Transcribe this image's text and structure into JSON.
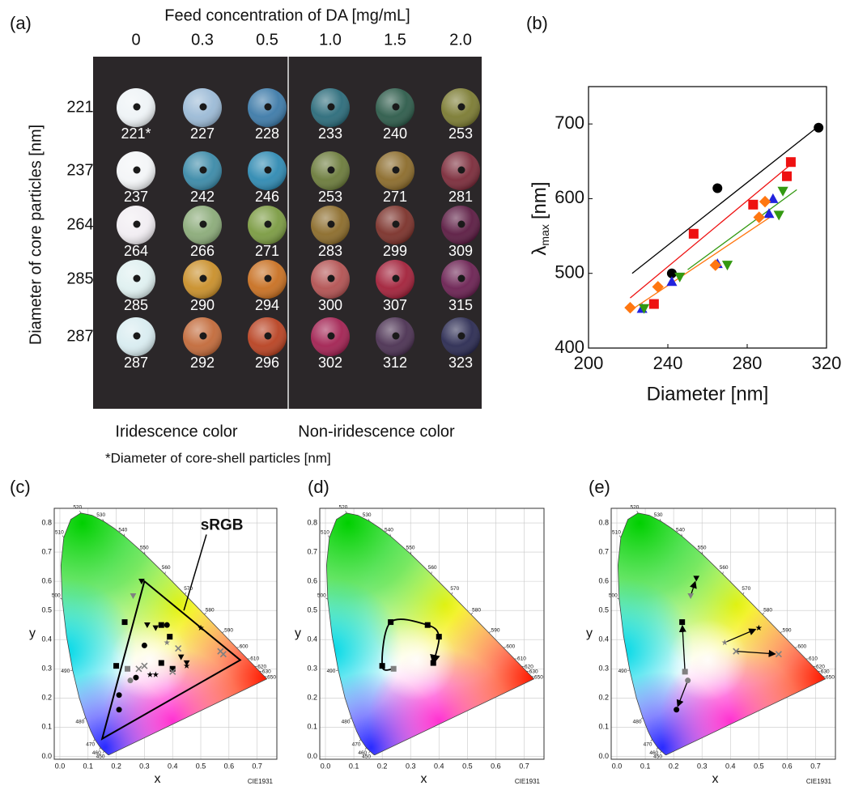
{
  "panel_labels": [
    "(a)",
    "(b)",
    "(c)",
    "(d)",
    "(e)"
  ],
  "figure_a": {
    "title": "Feed concentration of DA [mg/mL]",
    "columns": [
      "0",
      "0.3",
      "0.5",
      "1.0",
      "1.5",
      "2.0"
    ],
    "ylabel": "Diameter of core particles [nm]",
    "rows": [
      {
        "label": "221",
        "cells": [
          "221*",
          "227",
          "228",
          "233",
          "240",
          "253"
        ],
        "colors": [
          "#eef3f6",
          "#9bbad6",
          "#3d7aa8",
          "#2b6b7a",
          "#2d5b4a",
          "#7b7b32"
        ]
      },
      {
        "label": "237",
        "cells": [
          "237",
          "242",
          "246",
          "253",
          "271",
          "281"
        ],
        "colors": [
          "#f3f5f7",
          "#3b8aa8",
          "#2f8ab2",
          "#6b7b3b",
          "#8b6b2b",
          "#7b2b3a"
        ]
      },
      {
        "label": "264",
        "cells": [
          "264",
          "266",
          "271",
          "283",
          "299",
          "309"
        ],
        "colors": [
          "#f1edf2",
          "#8bab79",
          "#7b9b42",
          "#8b6b2a",
          "#7b312a",
          "#5b1b42"
        ]
      },
      {
        "label": "285",
        "cells": [
          "285",
          "290",
          "294",
          "300",
          "307",
          "315"
        ],
        "colors": [
          "#dff0f0",
          "#c98f2a",
          "#c87022",
          "#b25252",
          "#a2213a",
          "#6b2152"
        ]
      },
      {
        "label": "287",
        "cells": [
          "287",
          "292",
          "296",
          "302",
          "312",
          "323"
        ],
        "colors": [
          "#d8ecf0",
          "#c26a3a",
          "#b84222",
          "#a22252",
          "#4b3152",
          "#2b2b52"
        ]
      }
    ],
    "groups": [
      "Iridescence color",
      "Non-iridescence color"
    ],
    "footnote": "*Diameter of core-shell particles [nm]"
  },
  "cie_locus_labels": [
    "450",
    "460",
    "470",
    "480",
    "490",
    "500",
    "510",
    "520",
    "530",
    "540",
    "550",
    "560",
    "570",
    "580",
    "590",
    "600",
    "610",
    "620",
    "630",
    "650"
  ],
  "chart_data": [
    {
      "type": "scatter",
      "xlabel": "Diameter [nm]",
      "ylabel": {
        "symbol": "λ",
        "subscript": "max",
        "unit": "[nm]"
      },
      "xlim": [
        200,
        320
      ],
      "ylim": [
        400,
        750
      ],
      "xticks": [
        200,
        240,
        280,
        320
      ],
      "yticks": [
        400,
        500,
        600,
        700
      ],
      "series": [
        {
          "color": "#000000",
          "marker": "circle",
          "x": [
            242,
            265,
            316
          ],
          "values": [
            500,
            614,
            695
          ],
          "fit_x": [
            222,
            316
          ],
          "fit_y": [
            500,
            697
          ]
        },
        {
          "color": "#ee1111",
          "marker": "square",
          "x": [
            233,
            253,
            283,
            300,
            302
          ],
          "values": [
            459,
            553,
            592,
            630,
            649
          ],
          "fit_x": [
            221,
            303
          ],
          "fit_y": [
            467,
            648
          ]
        },
        {
          "color": "#2222dd",
          "marker": "triangle-up",
          "x": [
            227,
            242,
            265,
            291,
            293
          ],
          "values": [
            453,
            489,
            513,
            580,
            600
          ]
        },
        {
          "color": "#339911",
          "marker": "triangle-down",
          "x": [
            228,
            246,
            270,
            296,
            298
          ],
          "values": [
            453,
            495,
            511,
            578,
            610
          ],
          "fit_x": [
            250,
            305
          ],
          "fit_y": [
            505,
            612
          ]
        },
        {
          "color": "#ff7711",
          "marker": "diamond",
          "x": [
            221,
            235,
            264,
            286,
            289
          ],
          "values": [
            454,
            482,
            511,
            575,
            596
          ],
          "fit_x": [
            221,
            292
          ],
          "fit_y": [
            450,
            576
          ]
        }
      ]
    },
    {
      "type": "cie",
      "xlabel": "x",
      "ylabel": "y",
      "note": "CIE1931",
      "xlim": [
        -0.02,
        0.77
      ],
      "ylim": [
        -0.01,
        0.85
      ],
      "xticks": [
        {
          "value": 0,
          "label": "0.0"
        },
        0.1,
        0.2,
        0.3,
        0.4,
        0.5,
        0.6,
        0.7
      ],
      "yticks": [
        {
          "value": 0,
          "label": "0.0"
        },
        0.1,
        0.2,
        0.3,
        0.4,
        0.5,
        0.6,
        0.7,
        0.8
      ],
      "grid": true,
      "gamut": {
        "label": "sRGB",
        "x": [
          0.64,
          0.3,
          0.15
        ],
        "y": [
          0.33,
          0.6,
          0.06
        ]
      },
      "series": [
        {
          "marker": "square",
          "colors": [
            "#000",
            "#000",
            "#000",
            "#000",
            "#000",
            "#000",
            "#808080"
          ],
          "x": [
            0.23,
            0.2,
            0.36,
            0.39,
            0.36,
            0.4,
            0.24
          ],
          "values": [
            0.46,
            0.31,
            0.45,
            0.41,
            0.32,
            0.3,
            0.3
          ]
        },
        {
          "marker": "circle",
          "colors": [
            "#000",
            "#000",
            "#000",
            "#000",
            "#000",
            "#808080"
          ],
          "x": [
            0.21,
            0.21,
            0.27,
            0.3,
            0.38,
            0.25
          ],
          "values": [
            0.16,
            0.21,
            0.27,
            0.38,
            0.45,
            0.26
          ]
        },
        {
          "marker": "triangle-down",
          "colors": [
            "#000",
            "#000",
            "#000",
            "#000",
            "#000",
            "#808080"
          ],
          "x": [
            0.29,
            0.31,
            0.34,
            0.43,
            0.45,
            0.26
          ],
          "values": [
            0.6,
            0.45,
            0.44,
            0.34,
            0.32,
            0.55
          ]
        },
        {
          "marker": "star",
          "colors": [
            "#000",
            "#000",
            "#000",
            "#000",
            "#808080"
          ],
          "x": [
            0.5,
            0.32,
            0.34,
            0.45,
            0.38
          ],
          "values": [
            0.44,
            0.28,
            0.28,
            0.31,
            0.39
          ]
        },
        {
          "marker": "cross",
          "colors": [
            "#808080",
            "#808080",
            "#808080",
            "#808080",
            "#808080",
            "#808080"
          ],
          "x": [
            0.42,
            0.57,
            0.28,
            0.4,
            0.58,
            0.3
          ],
          "values": [
            0.37,
            0.36,
            0.3,
            0.29,
            0.35,
            0.31
          ]
        }
      ]
    },
    {
      "type": "cie",
      "xlabel": "x",
      "ylabel": "y",
      "note": "CIE1931",
      "xlim": [
        -0.02,
        0.77
      ],
      "ylim": [
        -0.01,
        0.85
      ],
      "xticks": [
        {
          "value": 0,
          "label": "0.0"
        },
        0.1,
        0.2,
        0.3,
        0.4,
        0.5,
        0.6,
        0.7
      ],
      "yticks": [
        {
          "value": 0,
          "label": "0.0"
        },
        0.1,
        0.2,
        0.3,
        0.4,
        0.5,
        0.6,
        0.7,
        0.8
      ],
      "grid": true,
      "series": [
        {
          "marker": "square",
          "connect": "curve",
          "colors": [
            "#808080",
            "#000",
            "#000",
            "#000",
            "#000",
            "#000"
          ],
          "x": [
            0.24,
            0.2,
            0.23,
            0.36,
            0.4,
            0.38
          ],
          "values": [
            0.3,
            0.31,
            0.46,
            0.45,
            0.41,
            0.32
          ]
        }
      ]
    },
    {
      "type": "cie",
      "xlabel": "x",
      "ylabel": "y",
      "note": "CIE1931",
      "xlim": [
        -0.02,
        0.77
      ],
      "ylim": [
        -0.01,
        0.85
      ],
      "xticks": [
        {
          "value": 0,
          "label": "0.0"
        },
        0.1,
        0.2,
        0.3,
        0.4,
        0.5,
        0.6,
        0.7
      ],
      "yticks": [
        {
          "value": 0,
          "label": "0.0"
        },
        0.1,
        0.2,
        0.3,
        0.4,
        0.5,
        0.6,
        0.7,
        0.8
      ],
      "grid": true,
      "series": [
        {
          "marker": "circle",
          "connect": "arrow",
          "colors": [
            "#808080",
            "#000"
          ],
          "x": [
            0.25,
            0.21
          ],
          "values": [
            0.26,
            0.16
          ]
        },
        {
          "marker": "square",
          "connect": "arrow",
          "colors": [
            "#808080",
            "#000"
          ],
          "x": [
            0.24,
            0.23
          ],
          "values": [
            0.29,
            0.46
          ]
        },
        {
          "marker": "triangle-down",
          "connect": "arrow",
          "colors": [
            "#808080",
            "#000"
          ],
          "x": [
            0.26,
            0.28
          ],
          "values": [
            0.55,
            0.61
          ]
        },
        {
          "marker": "star",
          "connect": "arrow",
          "colors": [
            "#808080",
            "#000"
          ],
          "x": [
            0.38,
            0.5
          ],
          "values": [
            0.39,
            0.44
          ]
        },
        {
          "marker": "cross",
          "connect": "arrow",
          "colors": [
            "#808080",
            "#808080"
          ],
          "x": [
            0.42,
            0.57
          ],
          "values": [
            0.36,
            0.35
          ]
        }
      ]
    }
  ]
}
